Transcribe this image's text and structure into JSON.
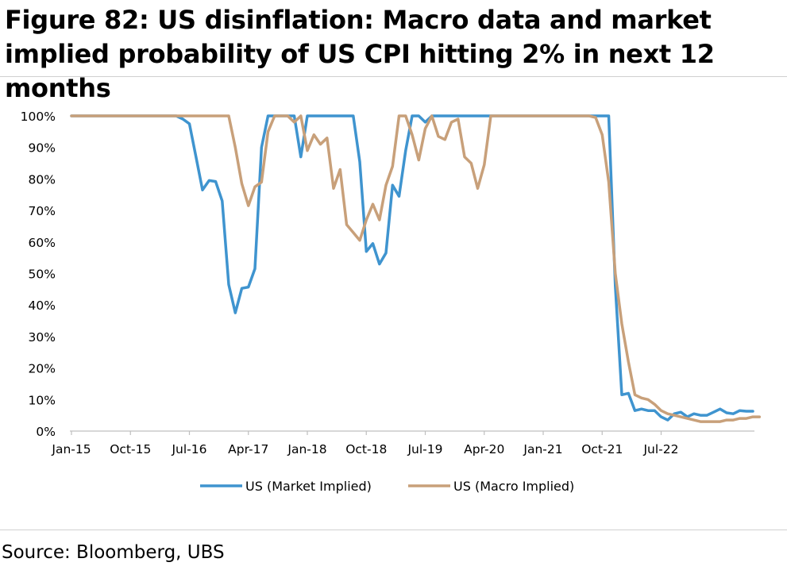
{
  "figure": {
    "title": "Figure 82: US disinflation: Macro data and market implied probability of US CPI hitting 2% in next 12 months",
    "source": "Source: Bloomberg, UBS"
  },
  "chart_data": {
    "type": "line",
    "x_start": "2015-01",
    "x_frequency": "monthly",
    "x_tick_labels": [
      "Jan-15",
      "Oct-15",
      "Jul-16",
      "Apr-17",
      "Jan-18",
      "Oct-18",
      "Jul-19",
      "Apr-20",
      "Jan-21",
      "Oct-21",
      "Jul-22"
    ],
    "y_tick_labels": [
      "0%",
      "10%",
      "20%",
      "30%",
      "40%",
      "50%",
      "60%",
      "70%",
      "80%",
      "90%",
      "100%"
    ],
    "ylim": [
      0,
      100
    ],
    "grid": false,
    "legend_position": "bottom",
    "series": [
      {
        "name": "US (Market Implied)",
        "color": "#3f94cf",
        "values": [
          100,
          100,
          100,
          100,
          100,
          100,
          100,
          100,
          100,
          100,
          100,
          100,
          100,
          100,
          100,
          100,
          100,
          99,
          97.5,
          87,
          76.5,
          79.5,
          79.2,
          73,
          46.5,
          37.5,
          45.3,
          45.7,
          51.5,
          90,
          100,
          100,
          100,
          100,
          100,
          87,
          100,
          100,
          100,
          100,
          100,
          100,
          100,
          100,
          85.5,
          57,
          59.5,
          53,
          56.5,
          78,
          74.5,
          89,
          100,
          100,
          98,
          100,
          100,
          100,
          100,
          100,
          100,
          100,
          100,
          100,
          100,
          100,
          100,
          100,
          100,
          100,
          100,
          100,
          100,
          100,
          100,
          100,
          100,
          100,
          100,
          100,
          100,
          100,
          100,
          46,
          11.5,
          12,
          6.5,
          7,
          6.5,
          6.5,
          4.5,
          3.5,
          5.5,
          6,
          4.5,
          5.5,
          5,
          5,
          6,
          7,
          5.8,
          5.5,
          6.5,
          6.3,
          6.3
        ],
        "values_note": "monthly from Jan-15"
      },
      {
        "name": "US (Macro Implied)",
        "color": "#c8a07a",
        "values": [
          100,
          100,
          100,
          100,
          100,
          100,
          100,
          100,
          100,
          100,
          100,
          100,
          100,
          100,
          100,
          100,
          100,
          100,
          100,
          100,
          100,
          100,
          100,
          100,
          100,
          90,
          78.5,
          71.5,
          77.5,
          79,
          95,
          100,
          100,
          100,
          98,
          100,
          89,
          94,
          91,
          93,
          77,
          83,
          65.5,
          63,
          60.5,
          67,
          72,
          67,
          78,
          84,
          100,
          100,
          94,
          86,
          96,
          100,
          93.5,
          92.5,
          98,
          99,
          87,
          85,
          77,
          84.5,
          100,
          100,
          100,
          100,
          100,
          100,
          100,
          100,
          100,
          100,
          100,
          100,
          100,
          100,
          100,
          100,
          99.5,
          94,
          79,
          50,
          34,
          22,
          11.5,
          10.5,
          10,
          8.5,
          6.5,
          5.5,
          5,
          4.5,
          4,
          3.5,
          3,
          3,
          3,
          3,
          3.5,
          3.5,
          4,
          4,
          4.5,
          4.5
        ],
        "values_note": "monthly from Jan-15"
      }
    ]
  }
}
